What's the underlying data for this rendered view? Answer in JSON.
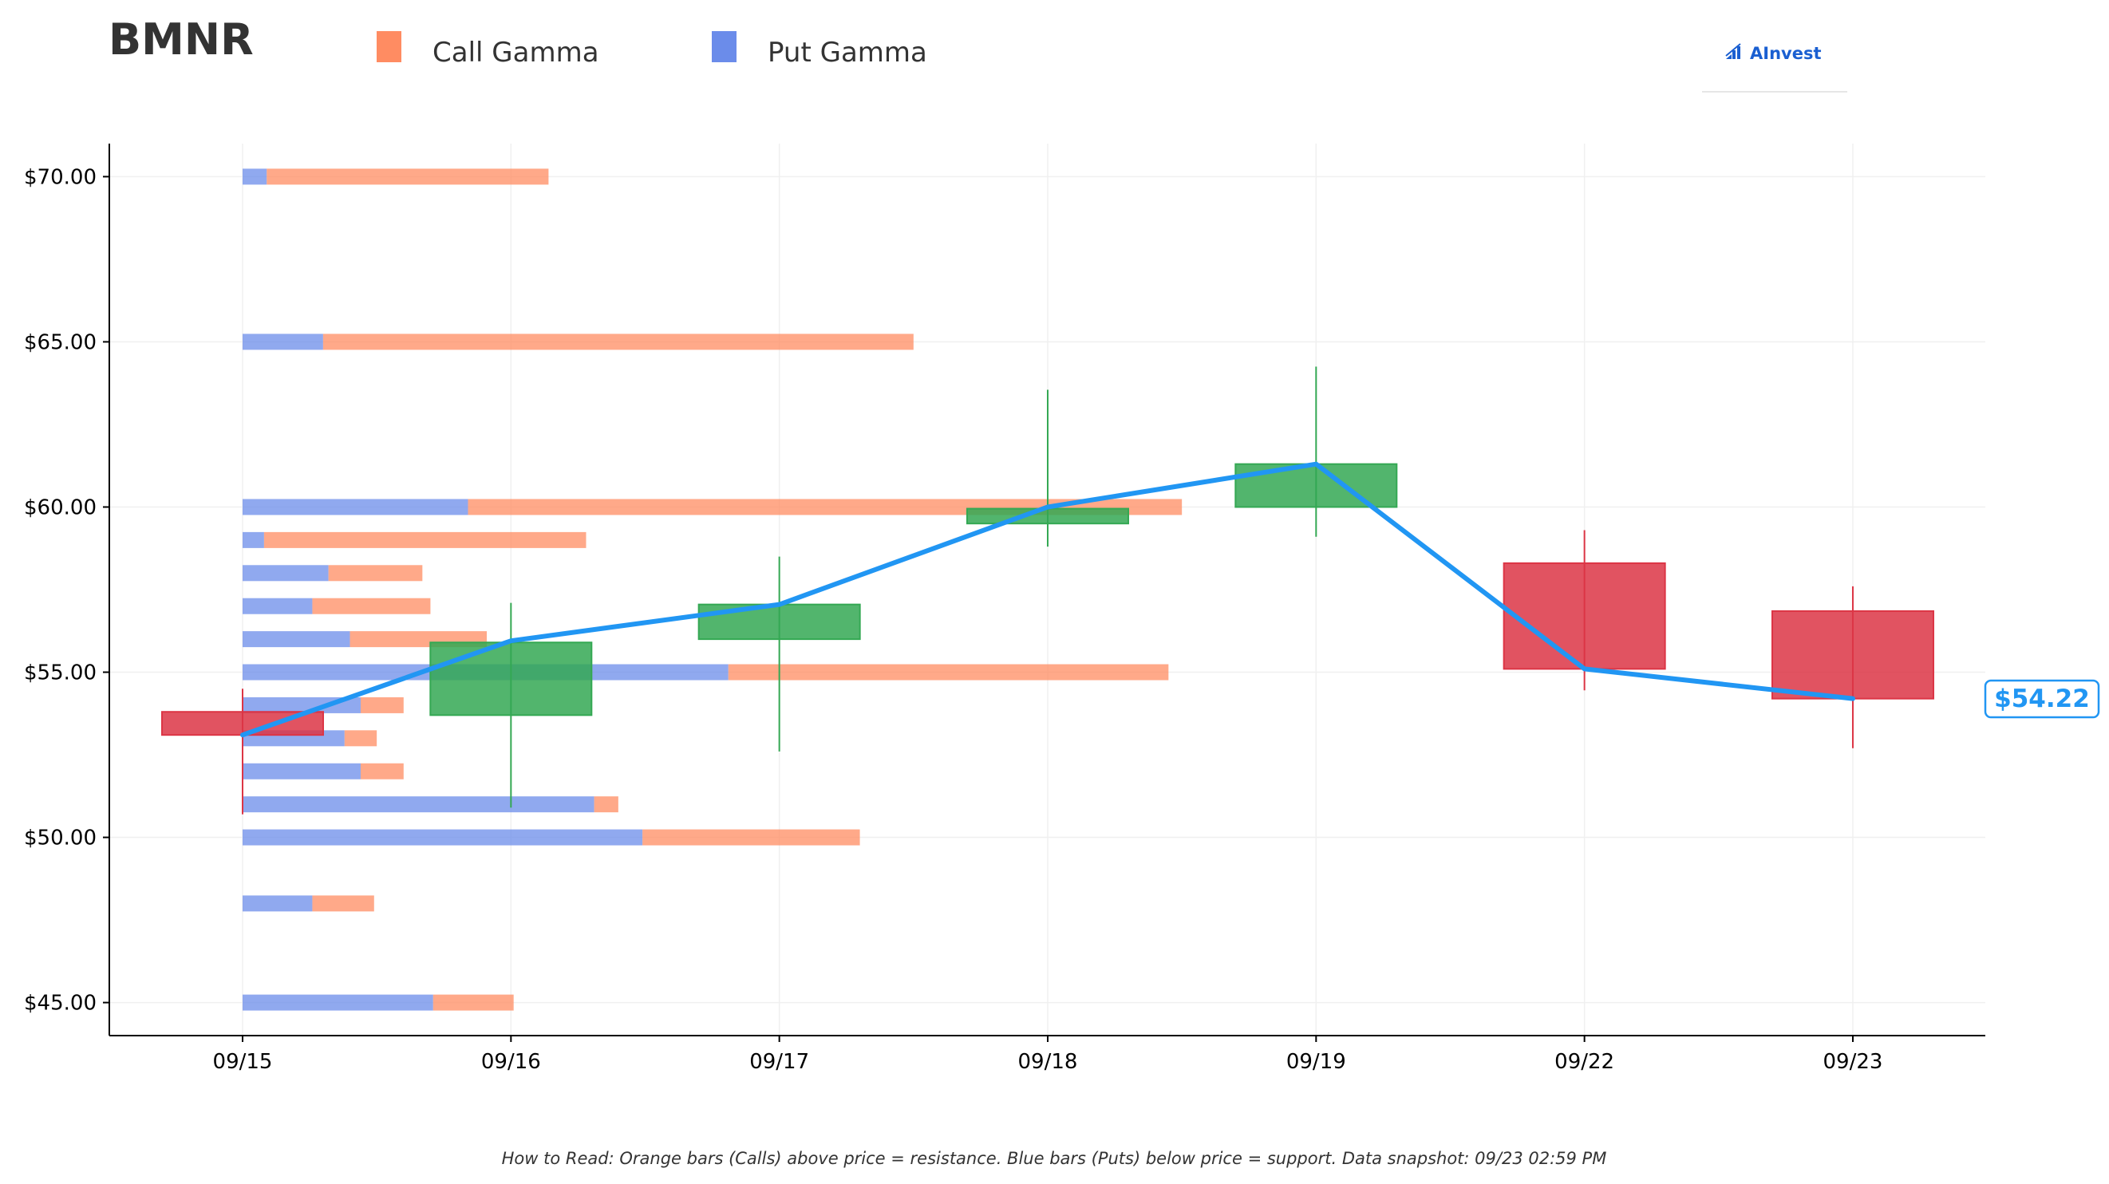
{
  "ticker": "BMNR",
  "logo": {
    "text": "AInvest",
    "icon": "ainvest-logo-icon"
  },
  "colors": {
    "call": "#ff8c62",
    "put": "#6b8cea",
    "up": "#34a853",
    "down": "#dc3545",
    "price_line": "#2196f3"
  },
  "chart_data": {
    "type": "candlestick_with_gamma_bars",
    "legend": [
      {
        "name": "Call Gamma",
        "color": "#ff8c62"
      },
      {
        "name": "Put Gamma",
        "color": "#6b8cea"
      }
    ],
    "x_labels": [
      "09/15",
      "09/16",
      "09/17",
      "09/18",
      "09/19",
      "09/22",
      "09/23"
    ],
    "y_ticks": [
      45,
      50,
      55,
      60,
      65,
      70
    ],
    "y_tick_labels": [
      "$45.00",
      "$50.00",
      "$55.00",
      "$60.00",
      "$65.00",
      "$70.00"
    ],
    "ylim": [
      44,
      71
    ],
    "grid": true,
    "candles": [
      {
        "date": "09/15",
        "open": 53.8,
        "close": 53.1,
        "high": 54.5,
        "low": 50.7
      },
      {
        "date": "09/16",
        "open": 53.7,
        "close": 55.9,
        "high": 57.1,
        "low": 50.9
      },
      {
        "date": "09/17",
        "open": 56.0,
        "close": 57.05,
        "high": 58.5,
        "low": 52.6
      },
      {
        "date": "09/18",
        "open": 59.5,
        "close": 59.95,
        "high": 63.55,
        "low": 58.8
      },
      {
        "date": "09/19",
        "open": 60.0,
        "close": 61.3,
        "high": 64.25,
        "low": 59.1
      },
      {
        "date": "09/22",
        "open": 58.3,
        "close": 55.1,
        "high": 59.3,
        "low": 54.45
      },
      {
        "date": "09/23",
        "open": 56.85,
        "close": 54.2,
        "high": 57.6,
        "low": 52.7
      }
    ],
    "price_line": [
      53.1,
      55.95,
      57.05,
      60.0,
      61.3,
      55.1,
      54.2
    ],
    "gamma_levels": [
      {
        "strike": 70,
        "put": 0.09,
        "call": 1.05
      },
      {
        "strike": 65,
        "put": 0.3,
        "call": 2.2
      },
      {
        "strike": 60,
        "put": 0.84,
        "call": 2.66
      },
      {
        "strike": 59,
        "put": 0.08,
        "call": 1.2
      },
      {
        "strike": 58,
        "put": 0.32,
        "call": 0.35
      },
      {
        "strike": 57,
        "put": 0.26,
        "call": 0.44
      },
      {
        "strike": 56,
        "put": 0.4,
        "call": 0.51
      },
      {
        "strike": 55,
        "put": 1.81,
        "call": 1.64
      },
      {
        "strike": 54,
        "put": 0.44,
        "call": 0.16
      },
      {
        "strike": 53,
        "put": 0.38,
        "call": 0.12
      },
      {
        "strike": 52,
        "put": 0.44,
        "call": 0.16
      },
      {
        "strike": 51,
        "put": 1.31,
        "call": 0.09
      },
      {
        "strike": 50,
        "put": 1.49,
        "call": 0.81
      },
      {
        "strike": 48,
        "put": 0.26,
        "call": 0.23
      },
      {
        "strike": 45,
        "put": 0.71,
        "call": 0.3
      }
    ],
    "current_price_label": "$54.22"
  },
  "footnote": "How to Read: Orange bars (Calls) above price = resistance. Blue bars (Puts) below price = support. Data snapshot: 09/23 02:59 PM"
}
